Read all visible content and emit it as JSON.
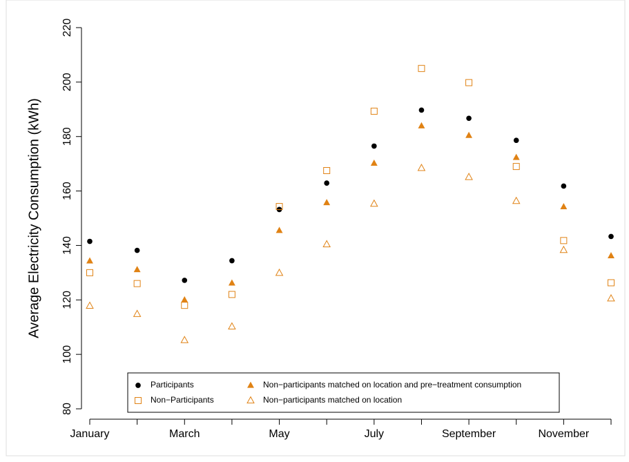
{
  "chart_data": {
    "type": "scatter",
    "ylabel": "Average Electricity Consumption (kWh)",
    "categories": [
      "January",
      null,
      "March",
      null,
      "May",
      null,
      "July",
      null,
      "September",
      null,
      "November",
      null
    ],
    "ylim": [
      80,
      220
    ],
    "yticks": [
      80,
      100,
      120,
      140,
      160,
      180,
      200,
      220
    ],
    "grid": false,
    "legend": "bottom",
    "series": [
      {
        "name": "Participants",
        "color": "#000000",
        "marker": "circle-filled",
        "values": [
          141.5,
          138.2,
          127.2,
          134.4,
          153.2,
          162.9,
          176.5,
          189.7,
          186.7,
          178.6,
          161.8,
          143.3
        ]
      },
      {
        "name": "Non−Participants",
        "color": "#e08214",
        "marker": "square-open",
        "values": [
          130,
          126,
          118,
          122,
          154.3,
          167.5,
          189.3,
          205,
          199.8,
          169,
          141.8,
          126.3
        ]
      },
      {
        "name": "Non−participants matched on location and pre−treatment consumption",
        "color": "#e08214",
        "marker": "triangle-filled",
        "values": [
          134.3,
          131.1,
          120,
          126.2,
          145.5,
          155.7,
          170.2,
          183.9,
          180.4,
          172.3,
          154.2,
          136.2
        ]
      },
      {
        "name": "Non−participants matched on location",
        "color": "#e08214",
        "marker": "triangle-open",
        "values": [
          117.8,
          114.8,
          105.2,
          110.2,
          129.9,
          140.4,
          155.3,
          168.4,
          165.1,
          156.3,
          138.3,
          120.5
        ]
      }
    ]
  }
}
